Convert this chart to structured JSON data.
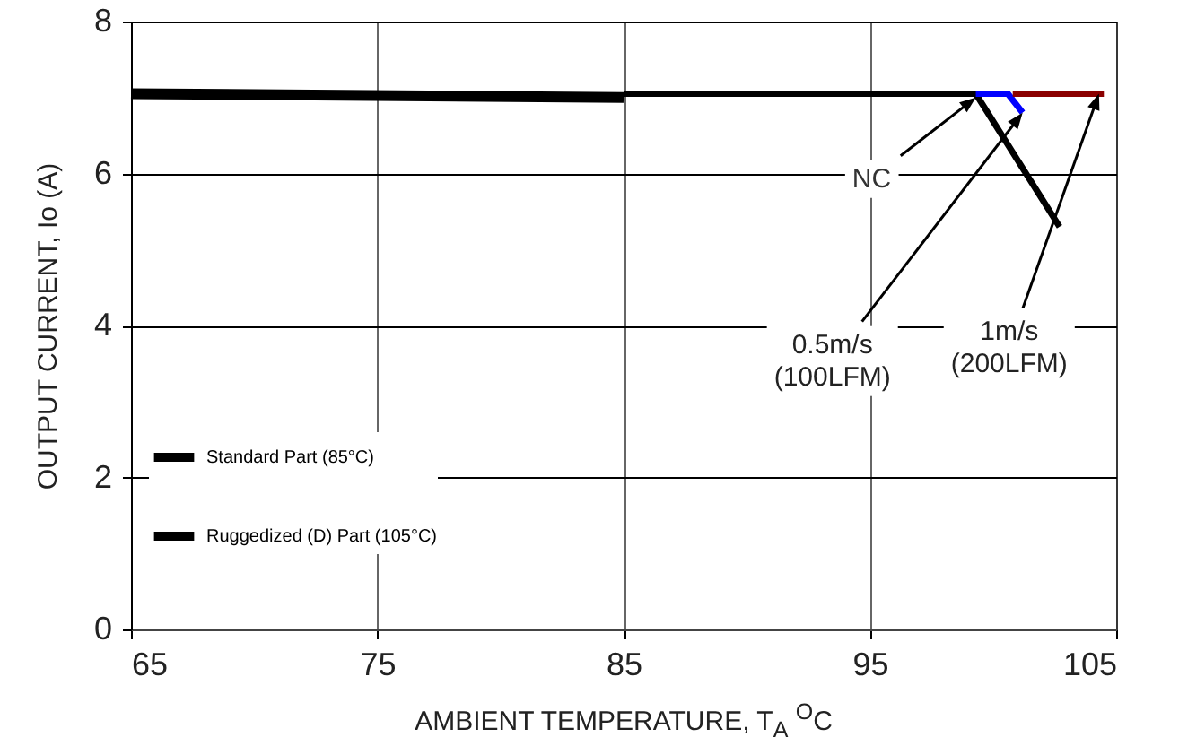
{
  "chart_data": {
    "type": "line",
    "xlabel": "AMBIENT TEMPERATURE, T$_{A}$ $^{O}$C",
    "ylabel": "OUTPUT CURRENT, Io  (A)",
    "series": [
      {
        "name": "Standard Part (85°C)",
        "color": "#000000",
        "x": [
          65,
          85
        ],
        "values": [
          7.05,
          7.0
        ]
      },
      {
        "name": "Ruggedized (D) Part (105°C)",
        "color": "#000000",
        "x": [
          85,
          99.3,
          102.7
        ],
        "values": [
          7.05,
          7.05,
          5.3
        ]
      },
      {
        "color": "#0000ff",
        "x": [
          99.3,
          100.6,
          101.2
        ],
        "values": [
          7.05,
          7.05,
          6.8
        ]
      },
      {
        "color": "#8b0000",
        "x": [
          100.8,
          104.5
        ],
        "values": [
          7.05,
          7.05
        ]
      }
    ],
    "annotations": [
      {
        "text": "NC",
        "x": 99.3,
        "y": 7.0
      },
      {
        "text": "0.5m/s\n(100LFM)",
        "x": 101.2,
        "y": 6.8
      },
      {
        "text": "1m/s\n(200LFM)",
        "x": 104.3,
        "y": 7.05
      }
    ],
    "xlim": [
      65,
      105
    ],
    "xticks": [
      65,
      75,
      85,
      95,
      105
    ],
    "ylim": [
      0,
      8
    ],
    "yticks": [
      0,
      2,
      4,
      6,
      8
    ],
    "grid": true,
    "legend": "bottom left",
    "marker": "none",
    "line_style": "solid"
  }
}
